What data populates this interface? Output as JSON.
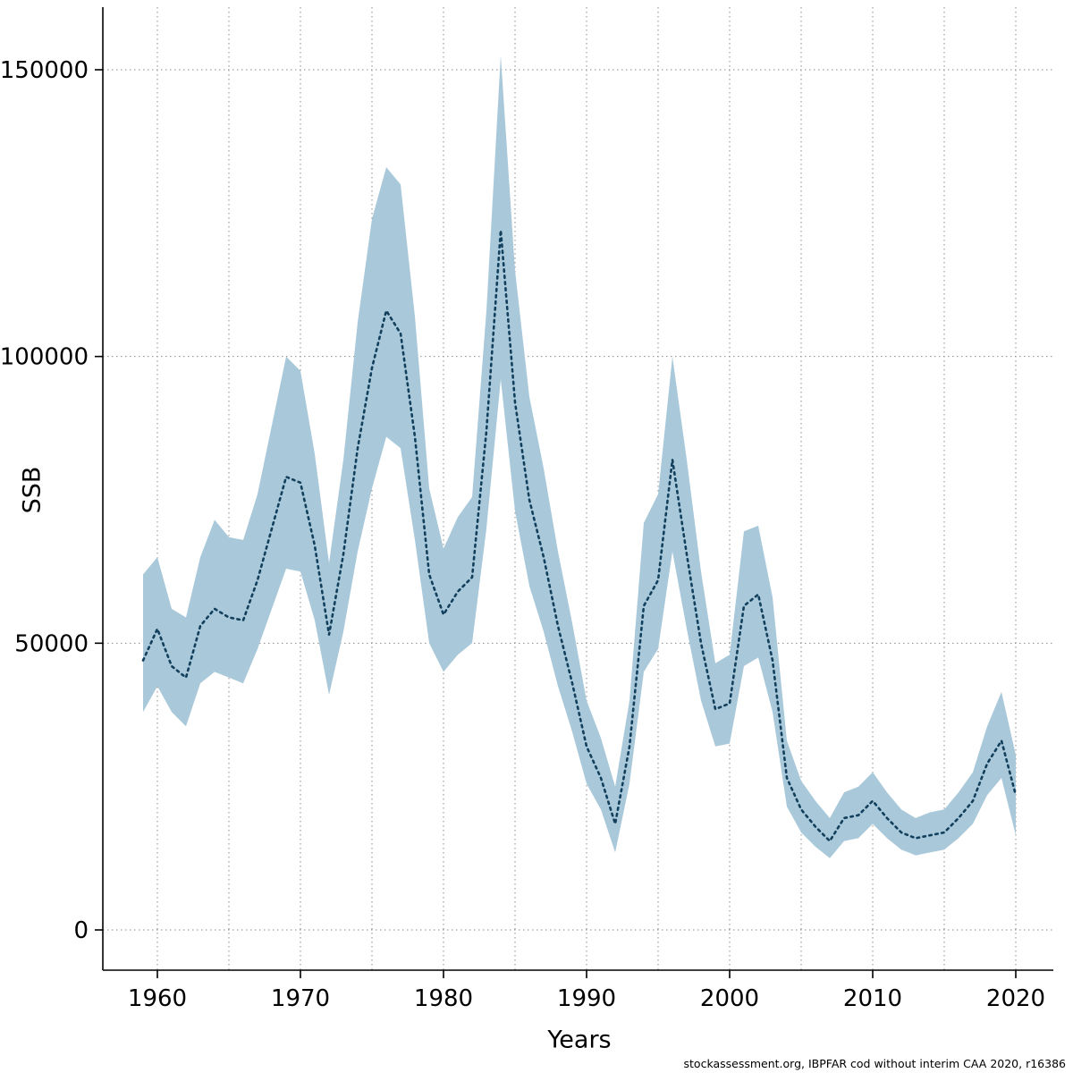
{
  "chart_data": {
    "type": "line",
    "title": "",
    "xlabel": "Years",
    "ylabel": "SSB",
    "footer": "stockassessment.org, IBPFAR cod without interim CAA 2020, r16386",
    "x": [
      1959,
      1960,
      1961,
      1962,
      1963,
      1964,
      1965,
      1966,
      1967,
      1968,
      1969,
      1970,
      1971,
      1972,
      1973,
      1974,
      1975,
      1976,
      1977,
      1978,
      1979,
      1980,
      1981,
      1982,
      1983,
      1984,
      1985,
      1986,
      1987,
      1988,
      1989,
      1990,
      1991,
      1992,
      1993,
      1994,
      1995,
      1996,
      1997,
      1998,
      1999,
      2000,
      2001,
      2002,
      2003,
      2004,
      2005,
      2006,
      2007,
      2008,
      2009,
      2010,
      2011,
      2012,
      2013,
      2014,
      2015,
      2016,
      2017,
      2018,
      2019,
      2020
    ],
    "series": [
      {
        "name": "SSB estimate",
        "role": "estimate",
        "style": "dotted",
        "values": [
          47000,
          52500,
          46000,
          44000,
          53000,
          56000,
          54500,
          54000,
          61000,
          70000,
          79000,
          78000,
          67000,
          51500,
          65500,
          84000,
          98000,
          108000,
          104000,
          86000,
          62000,
          55000,
          59000,
          61500,
          87000,
          122000,
          92000,
          75000,
          65000,
          53000,
          43000,
          32000,
          26500,
          18500,
          32000,
          56500,
          61000,
          82000,
          65500,
          50000,
          38500,
          39500,
          56500,
          58500,
          47000,
          26500,
          21000,
          18000,
          15500,
          19500,
          20000,
          22500,
          19500,
          17000,
          16000,
          16500,
          17000,
          19500,
          22500,
          29000,
          33000,
          23500
        ]
      },
      {
        "name": "Confidence lower bound",
        "role": "lower",
        "style": "band",
        "values": [
          38000,
          42500,
          38000,
          35500,
          43000,
          45000,
          44000,
          43000,
          49000,
          56000,
          63000,
          62500,
          54000,
          41000,
          52000,
          66000,
          77000,
          86000,
          84000,
          68000,
          50000,
          45000,
          48000,
          50000,
          70000,
          96000,
          73000,
          60000,
          52000,
          42500,
          34500,
          25500,
          21000,
          13500,
          25500,
          45000,
          49000,
          66000,
          52500,
          40000,
          32000,
          32500,
          46000,
          47500,
          38000,
          21500,
          17000,
          14500,
          12500,
          15500,
          16000,
          18500,
          16000,
          14000,
          13000,
          13500,
          14000,
          16000,
          18500,
          23500,
          26500,
          16500
        ]
      },
      {
        "name": "Confidence upper bound",
        "role": "upper",
        "style": "band",
        "values": [
          62000,
          65000,
          56000,
          54500,
          65000,
          71500,
          68500,
          68000,
          76000,
          88000,
          100000,
          97500,
          83000,
          64000,
          82000,
          106000,
          124000,
          133000,
          130000,
          107000,
          77000,
          66500,
          72000,
          75500,
          108000,
          152500,
          115000,
          93000,
          80500,
          66000,
          53500,
          40000,
          33500,
          25000,
          40000,
          71000,
          76000,
          100000,
          82000,
          62500,
          46500,
          48000,
          69500,
          70500,
          58000,
          33000,
          26000,
          22500,
          19500,
          24000,
          25000,
          27500,
          24000,
          21000,
          19500,
          20500,
          21000,
          24000,
          27500,
          35500,
          41500,
          30500
        ]
      }
    ],
    "xticks": [
      1960,
      1970,
      1980,
      1990,
      2000,
      2010,
      2020
    ],
    "yticks": [
      0,
      50000,
      100000,
      150000
    ],
    "xlim": [
      1959,
      2020
    ],
    "ylim": [
      0,
      155000
    ],
    "grid": {
      "visible": true,
      "x_interval": 5,
      "style": "dotted"
    },
    "legend": {
      "visible": false
    },
    "colors": {
      "band": "#a9c9da",
      "line": "#123f5c",
      "grid": "#8a8a8a",
      "axis": "#000000",
      "background": "#ffffff"
    }
  }
}
